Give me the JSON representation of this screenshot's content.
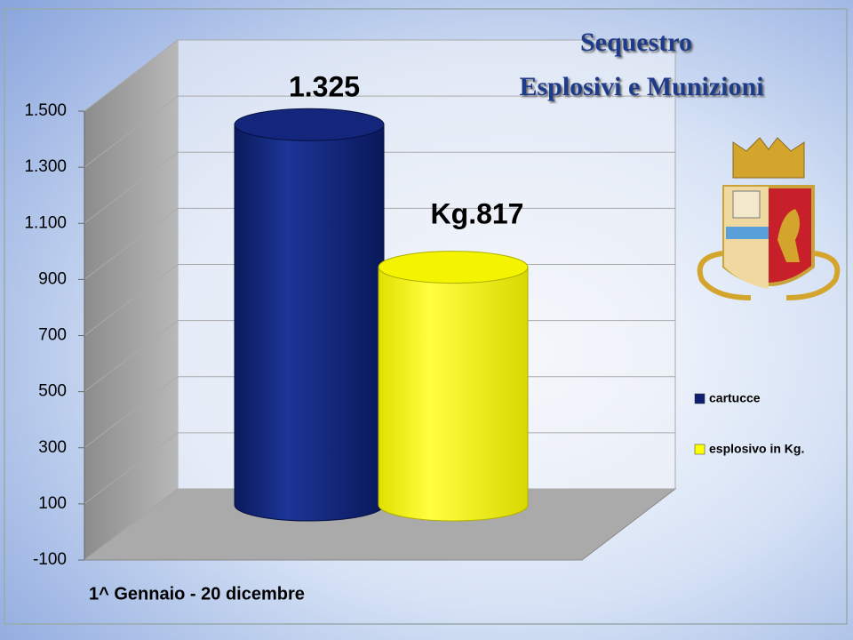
{
  "chart_data": {
    "type": "cylinder-bar",
    "title": "Sequestro",
    "subtitle": "Esplosivi e Munizioni",
    "annotation": "1^ Gennaio  - 20 dicembre",
    "categories": [
      null
    ],
    "series": [
      {
        "name": "cartucce",
        "color": "#0d1f6e",
        "values": [
          1325
        ],
        "value_labels": [
          "1.325"
        ]
      },
      {
        "name": "esplosivo  in Kg.",
        "color": "#ffff00",
        "values": [
          817
        ],
        "value_labels": [
          "Kg.817"
        ]
      }
    ],
    "ylim": [
      -100,
      1500
    ],
    "yticks": [
      -100,
      100,
      300,
      500,
      700,
      900,
      {
        "value": 1100,
        "label": "1.100"
      },
      {
        "value": 1300,
        "label": "1.300"
      },
      {
        "value": 1500,
        "label": "1.500"
      }
    ],
    "grid": true,
    "legend": "right"
  }
}
